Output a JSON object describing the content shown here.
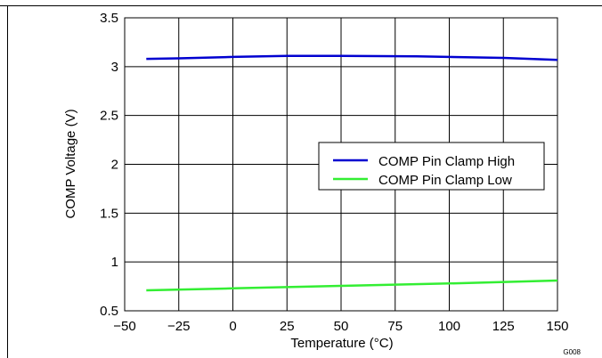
{
  "chart_data": {
    "type": "line",
    "xlabel": "Temperature (°C)",
    "ylabel": "COMP Voltage (V)",
    "xlim": [
      -50,
      150
    ],
    "ylim": [
      0.5,
      3.5
    ],
    "x_ticks": [
      -50,
      -25,
      0,
      25,
      50,
      75,
      100,
      125,
      150
    ],
    "x_tick_labels": [
      "−50",
      "−25",
      "0",
      "25",
      "50",
      "75",
      "100",
      "125",
      "150"
    ],
    "y_ticks": [
      0.5,
      1,
      1.5,
      2,
      2.5,
      3,
      3.5
    ],
    "y_tick_labels": [
      "0.5",
      "1",
      "1.5",
      "2",
      "2.5",
      "3",
      "3.5"
    ],
    "grid": true,
    "legend_position": "center-right",
    "figure_id": "G008",
    "series": [
      {
        "name": "COMP Pin Clamp High",
        "color": "#0000d0",
        "x": [
          -40,
          -25,
          0,
          25,
          50,
          85,
          125,
          150
        ],
        "y": [
          3.08,
          3.085,
          3.1,
          3.11,
          3.11,
          3.105,
          3.09,
          3.07
        ]
      },
      {
        "name": "COMP Pin Clamp Low",
        "color": "#33ee33",
        "x": [
          -40,
          0,
          50,
          100,
          150
        ],
        "y": [
          0.71,
          0.73,
          0.755,
          0.78,
          0.81
        ]
      }
    ]
  }
}
